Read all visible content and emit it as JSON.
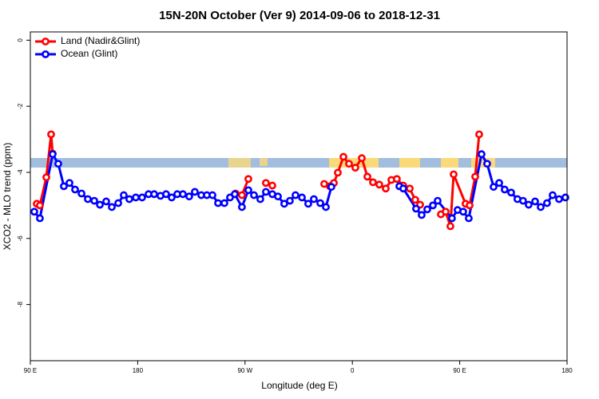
{
  "chart_data": {
    "type": "line",
    "title": "15N-20N October (Ver 9)   2014-09-06 to 2018-12-31",
    "x_label": "Longitude (deg E)",
    "y_label": "XCO2 - MLO trend (ppm)",
    "xlim": [
      90,
      540
    ],
    "ylim": [
      -9.7,
      0.25
    ],
    "xticks": [
      {
        "value": 90,
        "label": "90 E"
      },
      180,
      {
        "value": 270,
        "label": "90 W"
      },
      {
        "value": 360,
        "label": "0"
      },
      {
        "value": 450,
        "label": "90 E"
      },
      {
        "value": 540,
        "label": "180"
      }
    ],
    "yticks": [
      0,
      -2,
      -4,
      -6,
      -8
    ],
    "legend": "top-left",
    "series": [
      {
        "name": "Land (Nadir&Glint)",
        "color": "#ff0000",
        "x": [
          95.4,
          98.0,
          103.4,
          107.4,
          108.7,
          null,
          262.1,
          267.4,
          272.8,
          null,
          287.5,
          292.9,
          null,
          336.4,
          341.1,
          344.5,
          347.8,
          352.5,
          357.2,
          362.5,
          367.9,
          372.6,
          377.3,
          382.6,
          388.0,
          392.7,
          397.3,
          402.7,
          408.1,
          412.7,
          416.8,
          null,
          434.2,
          438.2,
          442.2,
          444.9,
          454.9,
          458.3,
          463.0,
          466.3
        ],
        "values": [
          -4.95,
          -5.0,
          -4.15,
          -2.85,
          -3.43,
          null,
          -4.64,
          -4.69,
          -4.2,
          null,
          -4.32,
          -4.4,
          null,
          -4.35,
          -4.42,
          -4.32,
          -4.01,
          -3.53,
          -3.74,
          -3.86,
          -3.57,
          -4.13,
          -4.3,
          -4.37,
          -4.49,
          -4.23,
          -4.2,
          -4.4,
          -4.49,
          -4.83,
          -4.98,
          null,
          -5.27,
          -5.19,
          -5.63,
          -4.06,
          -4.95,
          -5.0,
          -4.13,
          -2.85
        ]
      },
      {
        "name": "Ocean (Glint)",
        "color": "#0000ff",
        "x": [
          93.3,
          98.0,
          108.7,
          113.4,
          118.1,
          122.8,
          127.5,
          132.9,
          138.2,
          143.6,
          148.3,
          153.6,
          158.3,
          163.7,
          168.3,
          173.0,
          178.4,
          183.7,
          189.1,
          193.8,
          199.1,
          203.8,
          208.5,
          213.2,
          217.9,
          223.2,
          227.9,
          233.3,
          238.0,
          242.7,
          247.4,
          252.7,
          257.4,
          261.4,
          267.4,
          272.8,
          277.5,
          282.8,
          287.5,
          292.9,
          297.6,
          302.9,
          307.6,
          312.3,
          317.7,
          323.0,
          327.7,
          333.1,
          337.8,
          342.4,
          null,
          399.4,
          402.7,
          413.4,
          418.1,
          422.8,
          427.5,
          431.5,
          443.5,
          448.2,
          452.9,
          457.6,
          468.3,
          473.0,
          478.4,
          483.1,
          487.7,
          493.1,
          498.4,
          503.1,
          507.8,
          513.2,
          517.9,
          523.2,
          527.9,
          533.3,
          538.6
        ],
        "values": [
          -5.19,
          -5.39,
          -3.45,
          -3.74,
          -4.42,
          -4.32,
          -4.52,
          -4.64,
          -4.81,
          -4.86,
          -4.98,
          -4.88,
          -5.05,
          -4.93,
          -4.69,
          -4.81,
          -4.76,
          -4.76,
          -4.66,
          -4.66,
          -4.71,
          -4.66,
          -4.76,
          -4.66,
          -4.66,
          -4.73,
          -4.59,
          -4.69,
          -4.69,
          -4.69,
          -4.93,
          -4.93,
          -4.76,
          -4.66,
          -5.05,
          -4.54,
          -4.69,
          -4.81,
          -4.59,
          -4.66,
          -4.73,
          -4.95,
          -4.86,
          -4.69,
          -4.76,
          -4.95,
          -4.81,
          -4.93,
          -5.05,
          -4.44,
          null,
          -4.42,
          -4.49,
          -5.1,
          -5.29,
          -5.12,
          -5.0,
          -4.86,
          -5.39,
          -5.14,
          -5.19,
          -5.39,
          -3.45,
          -3.74,
          -4.44,
          -4.32,
          -4.52,
          -4.61,
          -4.81,
          -4.86,
          -4.98,
          -4.88,
          -5.05,
          -4.93,
          -4.69,
          -4.81,
          -4.76
        ]
      }
    ]
  }
}
